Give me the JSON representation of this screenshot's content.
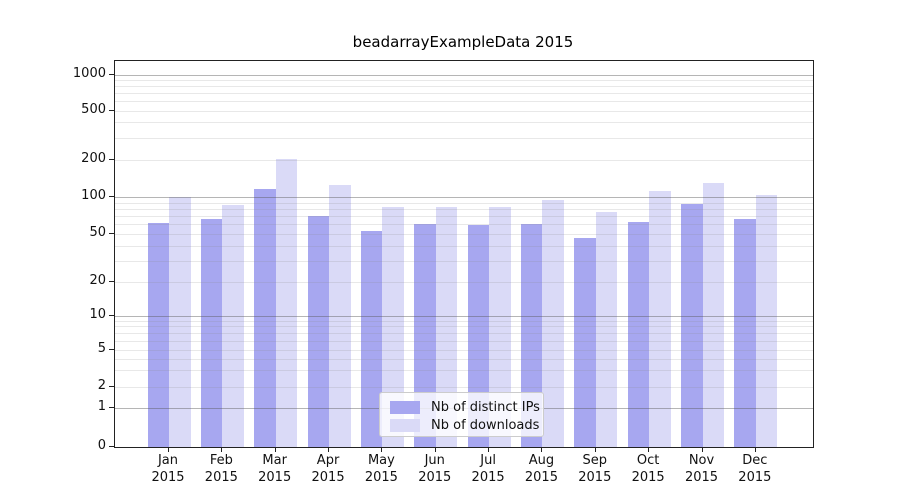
{
  "title": "beadarrayExampleData 2015",
  "colors": {
    "ips_bar": "#a7a7f0",
    "downloads_bar": "#dadaf7",
    "grid_major": "#ababab",
    "grid_minor": "#e9e9e9",
    "axis": "#222222"
  },
  "legend": {
    "items": [
      {
        "label": "Nb of distinct IPs",
        "series": "ips"
      },
      {
        "label": "Nb of downloads",
        "series": "downloads"
      }
    ]
  },
  "y_axis": {
    "ticks": [
      {
        "label": "1000",
        "value": 1000
      },
      {
        "label": "500",
        "value": 500
      },
      {
        "label": "200",
        "value": 200
      },
      {
        "label": "100",
        "value": 100
      },
      {
        "label": "50",
        "value": 50
      },
      {
        "label": "20",
        "value": 20
      },
      {
        "label": "10",
        "value": 10
      },
      {
        "label": "5",
        "value": 5
      },
      {
        "label": "2",
        "value": 2
      },
      {
        "label": "1",
        "value": 1
      },
      {
        "label": "0",
        "value": 0
      }
    ]
  },
  "x_axis": {
    "months": [
      "Jan",
      "Feb",
      "Mar",
      "Apr",
      "May",
      "Jun",
      "Jul",
      "Aug",
      "Sep",
      "Oct",
      "Nov",
      "Dec"
    ],
    "year": "2015"
  },
  "chart_data": {
    "type": "bar",
    "title": "beadarrayExampleData 2015",
    "categories": [
      "Jan 2015",
      "Feb 2015",
      "Mar 2015",
      "Apr 2015",
      "May 2015",
      "Jun 2015",
      "Jul 2015",
      "Aug 2015",
      "Sep 2015",
      "Oct 2015",
      "Nov 2015",
      "Dec 2015"
    ],
    "series": [
      {
        "name": "Nb of distinct IPs",
        "color": "#a7a7f0",
        "values": [
          62,
          66,
          115,
          70,
          53,
          60,
          59,
          60,
          46,
          63,
          88,
          66
        ]
      },
      {
        "name": "Nb of downloads",
        "color": "#dadaf7",
        "values": [
          100,
          86,
          203,
          124,
          83,
          83,
          83,
          94,
          76,
          112,
          129,
          103
        ]
      }
    ],
    "yscale": "log-like (0,1,2,5,10,20,50,100,200,500,1000)",
    "yticks": [
      0,
      1,
      2,
      5,
      10,
      20,
      50,
      100,
      200,
      500,
      1000
    ],
    "ylim": [
      0,
      1400
    ],
    "grid": true,
    "legend_position": "lower center"
  }
}
